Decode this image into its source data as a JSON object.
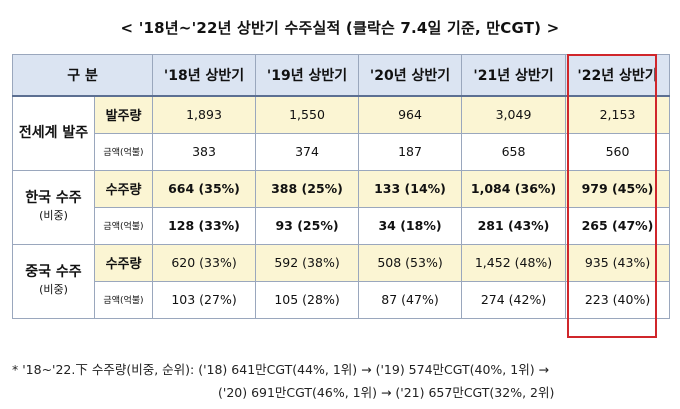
{
  "title": "< '18년~'22년 상반기 수주실적 (클락슨 7.4일 기준, 만CGT) >",
  "header": {
    "category": "구 분",
    "years": [
      "'18년 상반기",
      "'19년 상반기",
      "'20년 상반기",
      "'21년 상반기",
      "'22년 상반기"
    ]
  },
  "groups": [
    {
      "name": "전세계 발주",
      "sub": "",
      "rows": [
        {
          "label": "발주량",
          "values": [
            "1,893",
            "1,550",
            "964",
            "3,049",
            "2,153"
          ]
        },
        {
          "label": "금액(억불)",
          "values": [
            "383",
            "374",
            "187",
            "658",
            "560"
          ]
        }
      ]
    },
    {
      "name": "한국 수주",
      "sub": "(비중)",
      "rows": [
        {
          "label": "수주량",
          "values": [
            "664 (35%)",
            "388 (25%)",
            "133 (14%)",
            "1,084 (36%)",
            "979 (45%)"
          ]
        },
        {
          "label": "금액(억불)",
          "values": [
            "128 (33%)",
            "93 (25%)",
            "34 (18%)",
            "281 (43%)",
            "265 (47%)"
          ]
        }
      ]
    },
    {
      "name": "중국 수주",
      "sub": "(비중)",
      "rows": [
        {
          "label": "수주량",
          "values": [
            "620 (33%)",
            "592 (38%)",
            "508 (53%)",
            "1,452 (48%)",
            "935 (43%)"
          ]
        },
        {
          "label": "금액(억불)",
          "values": [
            "103 (27%)",
            "105 (28%)",
            "87 (47%)",
            "274 (42%)",
            "223 (40%)"
          ]
        }
      ]
    }
  ],
  "footnote": {
    "line1": "* '18~'22.下 수주량(비중, 순위): ('18) 641만CGT(44%, 1위) → ('19) 574만CGT(40%, 1위) →",
    "line2": "('20) 691만CGT(46%, 1위) → ('21) 657만CGT(32%, 2위)"
  },
  "colors": {
    "highlight_border": "#d0262b",
    "header_bg": "#dbe4f2",
    "volume_row_bg": "#fbf5d3"
  }
}
